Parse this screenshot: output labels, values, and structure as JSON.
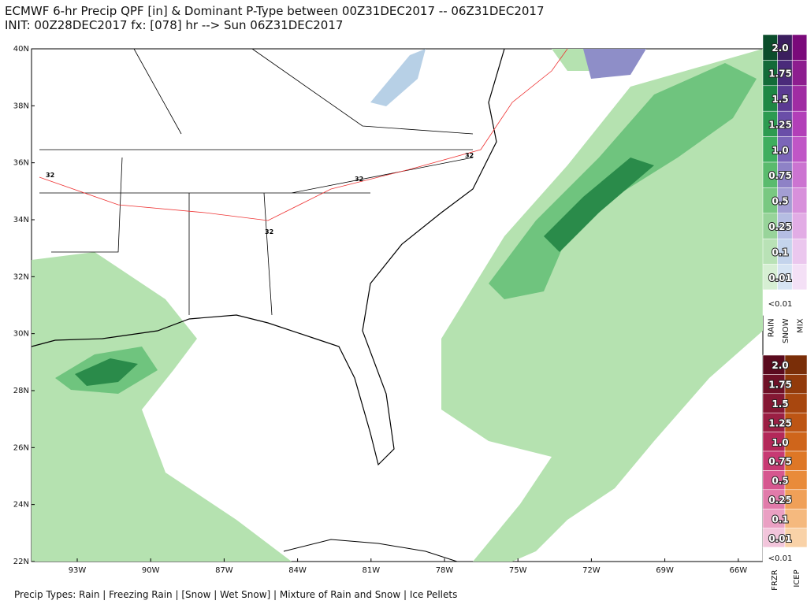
{
  "header": {
    "line1": "ECMWF 6-hr Precip QPF [in] & Dominant P-Type between 00Z31DEC2017 -- 06Z31DEC2017",
    "line2": "INIT: 00Z28DEC2017 fx: [078] hr --> Sun 06Z31DEC2017"
  },
  "map": {
    "lat_labels": [
      "40N",
      "38N",
      "36N",
      "34N",
      "32N",
      "30N",
      "28N",
      "26N",
      "24N",
      "22N"
    ],
    "lon_labels": [
      "93W",
      "90W",
      "87W",
      "84W",
      "81W",
      "78W",
      "75W",
      "72W",
      "69W",
      "66W"
    ],
    "contour_labels": [
      "32",
      "32",
      "32",
      "32"
    ]
  },
  "legend_top": {
    "levels": [
      "2.0",
      "1.75",
      "1.5",
      "1.25",
      "1.0",
      "0.75",
      "0.5",
      "0.25",
      "0.1",
      "0.01",
      "<0.01"
    ],
    "columns": [
      "RAIN",
      "SNOW",
      "MIX"
    ]
  },
  "legend_bottom": {
    "levels": [
      "2.0",
      "1.75",
      "1.5",
      "1.25",
      "1.0",
      "0.75",
      "0.5",
      "0.25",
      "0.1",
      "0.01",
      "<0.01"
    ],
    "columns": [
      "FRZR",
      "ICEP"
    ]
  },
  "footer": "Precip Types: Rain | Freezing Rain | [Snow | Wet Snow] | Mixture of Rain and Snow | Ice Pellets"
}
